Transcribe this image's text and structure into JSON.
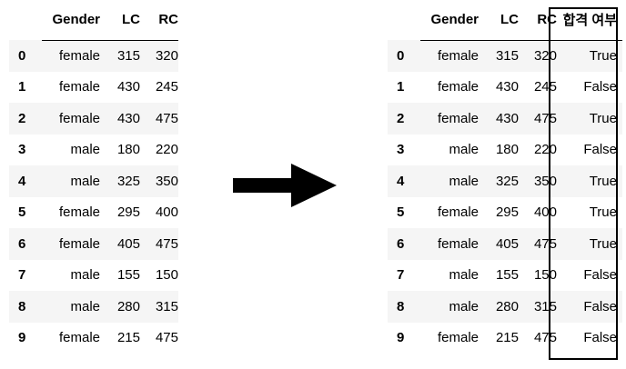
{
  "left_table": {
    "columns": [
      "",
      "Gender",
      "LC",
      "RC"
    ],
    "rows": [
      {
        "index": "0",
        "gender": "female",
        "lc": "315",
        "rc": "320"
      },
      {
        "index": "1",
        "gender": "female",
        "lc": "430",
        "rc": "245"
      },
      {
        "index": "2",
        "gender": "female",
        "lc": "430",
        "rc": "475"
      },
      {
        "index": "3",
        "gender": "male",
        "lc": "180",
        "rc": "220"
      },
      {
        "index": "4",
        "gender": "male",
        "lc": "325",
        "rc": "350"
      },
      {
        "index": "5",
        "gender": "female",
        "lc": "295",
        "rc": "400"
      },
      {
        "index": "6",
        "gender": "female",
        "lc": "405",
        "rc": "475"
      },
      {
        "index": "7",
        "gender": "male",
        "lc": "155",
        "rc": "150"
      },
      {
        "index": "8",
        "gender": "male",
        "lc": "280",
        "rc": "315"
      },
      {
        "index": "9",
        "gender": "female",
        "lc": "215",
        "rc": "475"
      }
    ]
  },
  "right_table": {
    "columns": [
      "",
      "Gender",
      "LC",
      "RC",
      "합격 여부"
    ],
    "rows": [
      {
        "index": "0",
        "gender": "female",
        "lc": "315",
        "rc": "320",
        "pass": "True"
      },
      {
        "index": "1",
        "gender": "female",
        "lc": "430",
        "rc": "245",
        "pass": "False"
      },
      {
        "index": "2",
        "gender": "female",
        "lc": "430",
        "rc": "475",
        "pass": "True"
      },
      {
        "index": "3",
        "gender": "male",
        "lc": "180",
        "rc": "220",
        "pass": "False"
      },
      {
        "index": "4",
        "gender": "male",
        "lc": "325",
        "rc": "350",
        "pass": "True"
      },
      {
        "index": "5",
        "gender": "female",
        "lc": "295",
        "rc": "400",
        "pass": "True"
      },
      {
        "index": "6",
        "gender": "female",
        "lc": "405",
        "rc": "475",
        "pass": "True"
      },
      {
        "index": "7",
        "gender": "male",
        "lc": "155",
        "rc": "150",
        "pass": "False"
      },
      {
        "index": "8",
        "gender": "male",
        "lc": "280",
        "rc": "315",
        "pass": "False"
      },
      {
        "index": "9",
        "gender": "female",
        "lc": "215",
        "rc": "475",
        "pass": "False"
      }
    ]
  },
  "arrow": {
    "icon": "right-arrow-icon",
    "color": "#000000"
  },
  "highlight": {
    "target_column": "합격 여부",
    "border_color": "#000000"
  }
}
